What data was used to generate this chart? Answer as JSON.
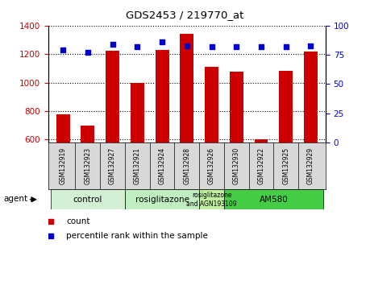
{
  "title": "GDS2453 / 219770_at",
  "samples": [
    "GSM132919",
    "GSM132923",
    "GSM132927",
    "GSM132921",
    "GSM132924",
    "GSM132928",
    "GSM132926",
    "GSM132930",
    "GSM132922",
    "GSM132925",
    "GSM132929"
  ],
  "counts": [
    775,
    700,
    1225,
    1000,
    1230,
    1345,
    1110,
    1075,
    600,
    1085,
    1220
  ],
  "percentiles": [
    79,
    77,
    84,
    82,
    86,
    83,
    82,
    82,
    82,
    82,
    83
  ],
  "bar_color": "#cc0000",
  "dot_color": "#0000cc",
  "ylim_left": [
    580,
    1400
  ],
  "ylim_right": [
    0,
    100
  ],
  "yticks_left": [
    600,
    800,
    1000,
    1200,
    1400
  ],
  "yticks_right": [
    0,
    25,
    50,
    75,
    100
  ],
  "groups": [
    {
      "label": "control",
      "start": 0,
      "end": 3,
      "color": "#d4f0d4"
    },
    {
      "label": "rosiglitazone",
      "start": 3,
      "end": 6,
      "color": "#c0eec0"
    },
    {
      "label": "rosiglitazone\nand AGN193109",
      "start": 6,
      "end": 7,
      "color": "#c0eea0"
    },
    {
      "label": "AM580",
      "start": 7,
      "end": 11,
      "color": "#44cc44"
    }
  ],
  "agent_label": "agent",
  "legend_count_label": "count",
  "legend_percentile_label": "percentile rank within the sample",
  "tick_label_color_left": "#cc0000",
  "tick_label_color_right": "#0000cc",
  "tick_bg_color": "#d8d8d8",
  "border_color": "#000000"
}
